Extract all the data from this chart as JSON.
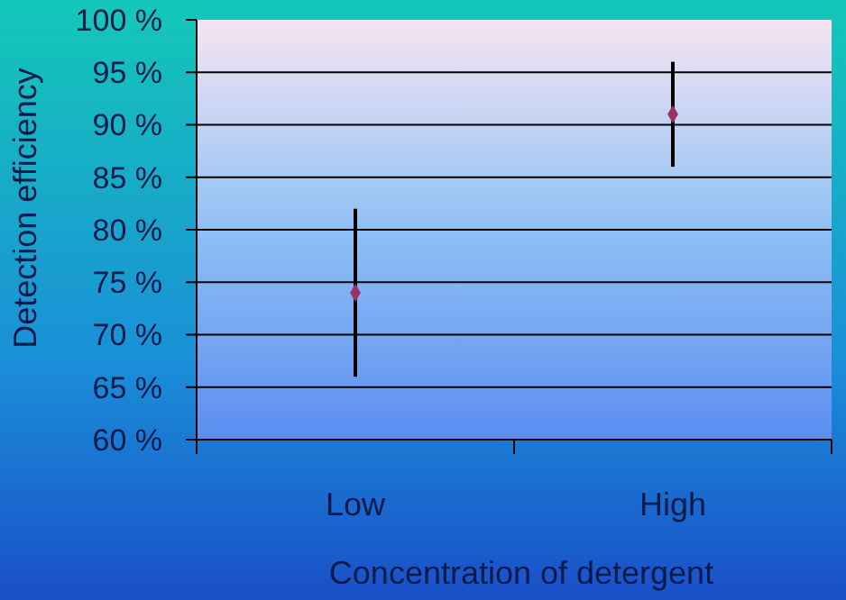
{
  "chart_data": {
    "type": "scatter",
    "xlabel": "Concentration of detergent",
    "ylabel": "Detection efficiency",
    "categories": [
      "Low",
      "High"
    ],
    "series": [
      {
        "color": "#993366",
        "values": [
          74,
          91
        ],
        "errors": [
          [
            66,
            82
          ],
          [
            86,
            96
          ]
        ]
      }
    ],
    "ylim": [
      60,
      100
    ],
    "yticks": [
      {
        "value": 60,
        "label": "60 %"
      },
      {
        "value": 65,
        "label": "65 %"
      },
      {
        "value": 70,
        "label": "70 %"
      },
      {
        "value": 75,
        "label": "75 %"
      },
      {
        "value": 80,
        "label": "80 %"
      },
      {
        "value": 85,
        "label": "85 %"
      },
      {
        "value": 90,
        "label": "90 %"
      },
      {
        "value": 95,
        "label": "95 %"
      },
      {
        "value": 100,
        "label": "100 %"
      }
    ],
    "grid": "y",
    "marker": "diamond"
  }
}
